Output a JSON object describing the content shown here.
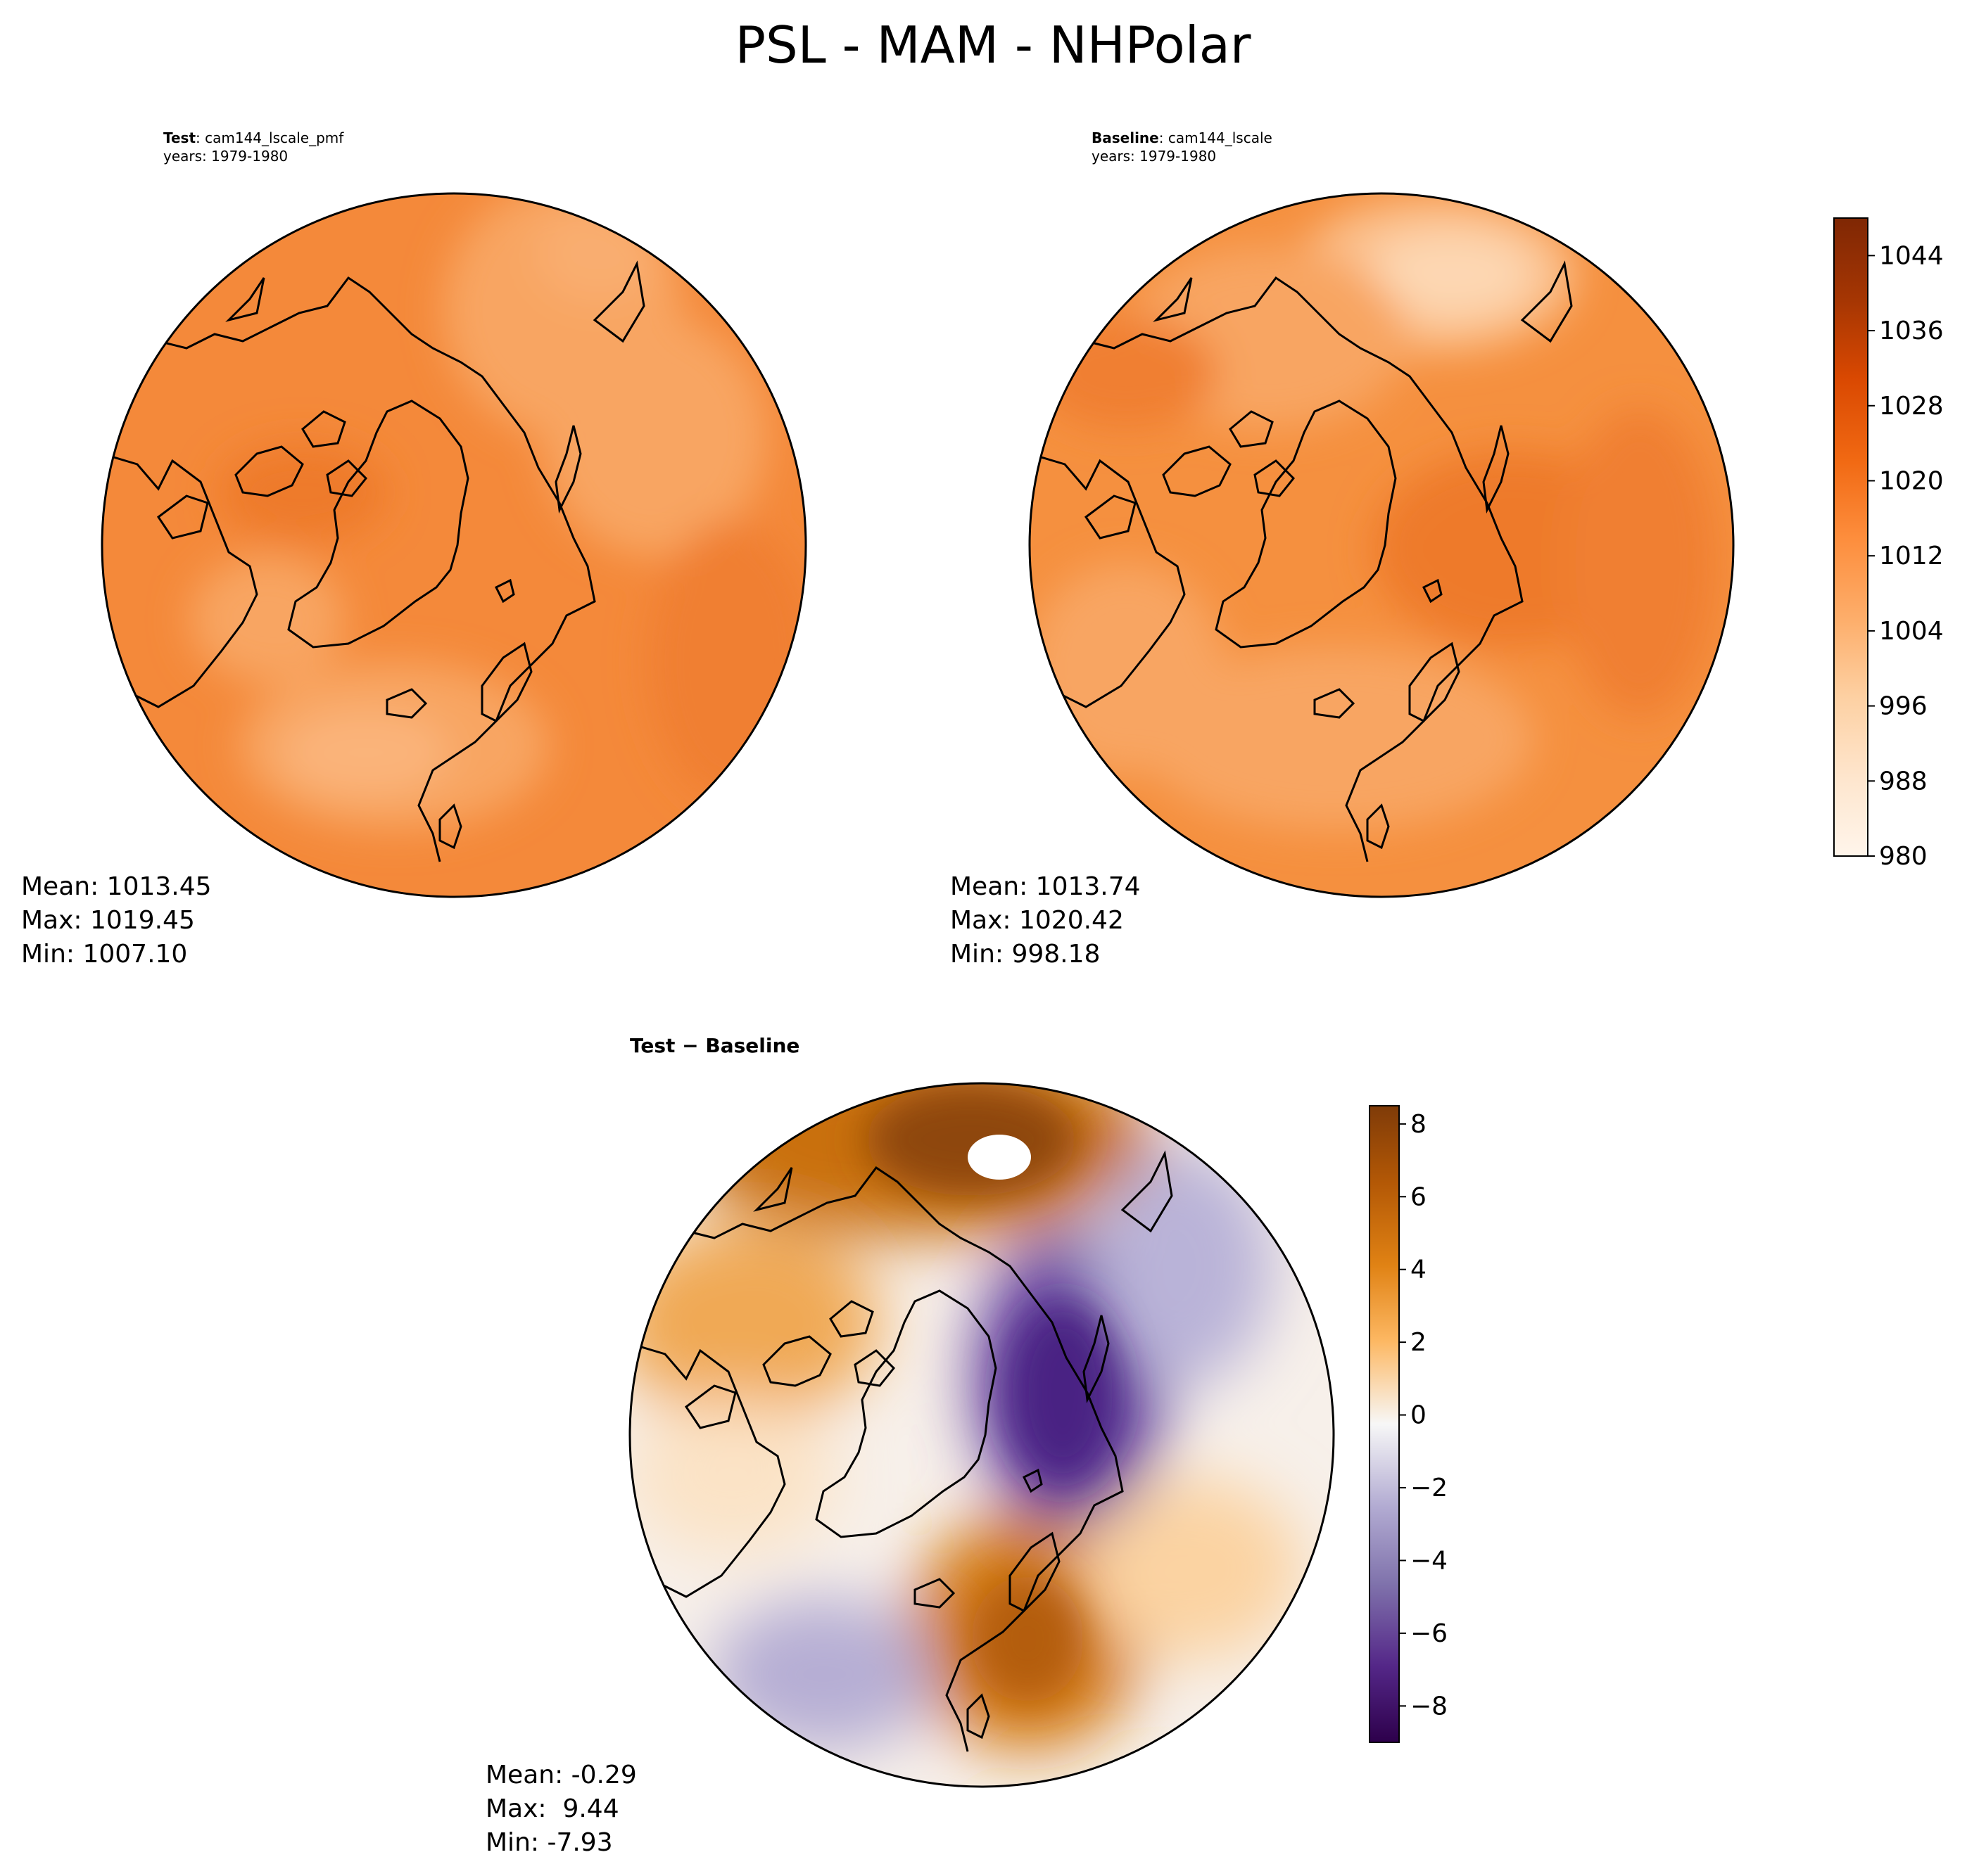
{
  "figure": {
    "title": "PSL - MAM - NHPolar"
  },
  "panels": {
    "test": {
      "label_bold": "Test",
      "label_rest": ": cam144_lscale_pmf",
      "years": "years: 1979-1980",
      "mean": "Mean: 1013.45",
      "max": "Max: 1019.45",
      "min": "Min: 1007.10"
    },
    "baseline": {
      "label_bold": "Baseline",
      "label_rest": ": cam144_lscale",
      "years": "years: 1979-1980",
      "mean": "Mean: 1013.74",
      "max": "Max: 1020.42",
      "min": "Min: 998.18"
    },
    "diff": {
      "title": "Test − Baseline",
      "mean": "Mean: -0.29",
      "max": "Max:  9.44",
      "min": "Min: -7.93"
    }
  },
  "colors": {
    "oranges_top": "#7f2704",
    "oranges_bottom": "#fff5eb",
    "field_main": "#f28a3c",
    "diff_pos_max": "#7f3b08",
    "diff_neg_max": "#2d004b"
  },
  "chart_data": [
    {
      "type": "heatmap",
      "name": "Test",
      "projection": "north polar stereographic",
      "colorbar_range": [
        980,
        1048
      ],
      "mean": 1013.45,
      "max": 1019.45,
      "min": 1007.1
    },
    {
      "type": "heatmap",
      "name": "Baseline",
      "projection": "north polar stereographic",
      "colorbar": {
        "ticks": [
          980,
          988,
          996,
          1004,
          1012,
          1020,
          1028,
          1036,
          1044
        ],
        "tick_labels": [
          "980",
          "988",
          "996",
          "1004",
          "1012",
          "1020",
          "1028",
          "1036",
          "1044"
        ],
        "range": [
          980,
          1048
        ],
        "levels": 17,
        "colormap": "Oranges"
      },
      "mean": 1013.74,
      "max": 1020.42,
      "min": 998.18
    },
    {
      "type": "heatmap",
      "name": "Test − Baseline",
      "projection": "north polar stereographic",
      "colorbar": {
        "ticks": [
          -8,
          -6,
          -4,
          -2,
          0,
          2,
          4,
          6,
          8
        ],
        "tick_labels": [
          "−8",
          "−6",
          "−4",
          "−2",
          "0",
          "2",
          "4",
          "6",
          "8"
        ],
        "range": [
          -9,
          8.5
        ],
        "colormap": "PuOr_r"
      },
      "mean": -0.29,
      "max": 9.44,
      "min": -7.93
    }
  ]
}
